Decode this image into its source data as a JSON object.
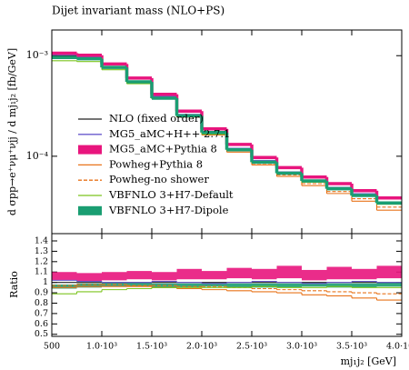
{
  "chart_data": [
    {
      "type": "histogram",
      "title": "Dijet invariant mass (NLO+PS)",
      "ylabel": "d σpp→e⁺νμ⁺νjj / d mj₁j₂ [fb/GeV]",
      "log_y": true,
      "legend": "lower left",
      "bins": [
        500,
        750,
        1000,
        1250,
        1500,
        1750,
        2000,
        2250,
        2500,
        2750,
        3000,
        3250,
        3500,
        3750,
        4000
      ],
      "xlim": [
        500,
        4000
      ],
      "ylim": [
        1.7e-05,
        0.0018
      ],
      "yticks": [
        {
          "value": 0.001,
          "label": "10⁻³"
        },
        {
          "value": 0.0001,
          "label": "10⁻⁴"
        }
      ],
      "series": [
        {
          "name": "NLO (fixed order)",
          "color": "#222222",
          "style": "line",
          "values": [
            0.001,
            0.00096,
            0.00078,
            0.00056,
            0.00039,
            0.00026,
            0.000175,
            0.00012,
            9e-05,
            7e-05,
            5.8e-05,
            4.9e-05,
            4.2e-05,
            3.5e-05
          ]
        },
        {
          "name": "MG5_aMC+H++ 2.7.1",
          "color": "#6a5acd",
          "style": "line",
          "values": [
            0.00102,
            0.00097,
            0.00078,
            0.00056,
            0.000394,
            0.00026,
            0.000173,
            0.00012,
            9.09e-05,
            7e-05,
            5.74e-05,
            4.9e-05,
            4.24e-05,
            3.5e-05
          ]
        },
        {
          "name": "MG5_aMC+Pythia 8",
          "color": "#e8157d",
          "style": "band",
          "values": [
            0.00106,
            0.00101,
            0.000827,
            0.000599,
            0.000413,
            0.000281,
            0.000187,
            0.000131,
            9.72e-05,
            7.7e-05,
            6.21e-05,
            5.34e-05,
            4.54e-05,
            3.85e-05
          ]
        },
        {
          "name": "Powheg+Pythia 8",
          "color": "#e8731a",
          "style": "line",
          "values": [
            0.00095,
            0.000922,
            0.000749,
            0.000538,
            0.000371,
            0.000244,
            0.000163,
            0.00011,
            8.19e-05,
            6.3e-05,
            5.1e-05,
            4.26e-05,
            3.57e-05,
            2.91e-05
          ]
        },
        {
          "name": "Powheg-no shower",
          "color": "#e8731a",
          "style": "dashed",
          "values": [
            0.00097,
            0.000941,
            0.000764,
            0.000543,
            0.000378,
            0.00025,
            0.000168,
            0.000114,
            8.46e-05,
            6.51e-05,
            5.34e-05,
            4.46e-05,
            3.78e-05,
            3.12e-05
          ]
        },
        {
          "name": "VBFNLO 3+H7-Default",
          "color": "#7cc41e",
          "style": "line",
          "values": [
            0.00089,
            0.000874,
            0.000725,
            0.000526,
            0.000371,
            0.000247,
            0.000166,
            0.000114,
            8.64e-05,
            6.65e-05,
            5.51e-05,
            4.7e-05,
            3.99e-05,
            3.33e-05
          ]
        },
        {
          "name": "VBFNLO 3+H7-Dipole",
          "color": "#1a9e72",
          "style": "band",
          "values": [
            0.00096,
            0.000931,
            0.000764,
            0.000549,
            0.000378,
            0.000252,
            0.000172,
            0.000116,
            8.73e-05,
            6.79e-05,
            5.68e-05,
            4.75e-05,
            4.07e-05,
            3.43e-05
          ]
        }
      ]
    },
    {
      "type": "histogram",
      "ylabel": "Ratio",
      "xlabel": "mj₁j₂ [GeV]",
      "bins": [
        500,
        750,
        1000,
        1250,
        1500,
        1750,
        2000,
        2250,
        2500,
        2750,
        3000,
        3250,
        3500,
        3750,
        4000
      ],
      "xlim": [
        500,
        4000
      ],
      "xticks": [
        500,
        {
          "value": 1000,
          "label": "1.0·10³"
        },
        {
          "value": 1500,
          "label": "1.5·10³"
        },
        {
          "value": 2000,
          "label": "2.0·10³"
        },
        {
          "value": 2500,
          "label": "2.5·10³"
        },
        {
          "value": 3000,
          "label": "3.0·10³"
        },
        {
          "value": 3500,
          "label": "3.5·10³"
        },
        {
          "value": 4000,
          "label": "4.0·10³"
        }
      ],
      "ylim": [
        0.48,
        1.47
      ],
      "yticks": [
        0.5,
        0.6,
        0.7,
        0.8,
        0.9,
        1,
        1.1,
        1.2,
        1.3,
        1.4
      ],
      "series": [
        {
          "color": "#e8157d",
          "style": "band",
          "values": [
            1.06,
            1.05,
            1.06,
            1.07,
            1.06,
            1.08,
            1.07,
            1.09,
            1.08,
            1.1,
            1.07,
            1.09,
            1.08,
            1.1
          ],
          "errors": [
            0.04,
            0.04,
            0.04,
            0.04,
            0.04,
            0.05,
            0.04,
            0.05,
            0.05,
            0.06,
            0.05,
            0.06,
            0.05,
            0.06
          ]
        },
        {
          "color": "#1a9e72",
          "style": "band",
          "values": [
            0.96,
            0.97,
            0.98,
            0.98,
            0.97,
            0.97,
            0.98,
            0.97,
            0.97,
            0.97,
            0.98,
            0.97,
            0.97,
            0.98
          ],
          "errors": [
            0.02,
            0.02,
            0.02,
            0.02,
            0.02,
            0.02,
            0.02,
            0.02,
            0.02,
            0.02,
            0.02,
            0.02,
            0.02,
            0.02
          ]
        },
        {
          "color": "#222222",
          "style": "line",
          "values": [
            1,
            1,
            1,
            1,
            1,
            1,
            1,
            1,
            1,
            1,
            1,
            1,
            1,
            1
          ]
        },
        {
          "color": "#6a5acd",
          "style": "line",
          "values": [
            1.02,
            1.01,
            1.0,
            1.0,
            1.01,
            1.0,
            0.99,
            1.0,
            1.01,
            1.0,
            0.99,
            1.0,
            1.01,
            1.0
          ]
        },
        {
          "color": "#e8731a",
          "style": "line",
          "values": [
            0.95,
            0.96,
            0.96,
            0.96,
            0.95,
            0.94,
            0.93,
            0.92,
            0.91,
            0.9,
            0.88,
            0.87,
            0.85,
            0.83
          ]
        },
        {
          "color": "#e8731a",
          "style": "dashed",
          "values": [
            0.97,
            0.98,
            0.98,
            0.97,
            0.97,
            0.96,
            0.96,
            0.95,
            0.94,
            0.93,
            0.92,
            0.91,
            0.9,
            0.89
          ]
        },
        {
          "color": "#7cc41e",
          "style": "line",
          "values": [
            0.89,
            0.91,
            0.93,
            0.94,
            0.95,
            0.95,
            0.95,
            0.95,
            0.96,
            0.95,
            0.95,
            0.96,
            0.95,
            0.95
          ]
        }
      ]
    }
  ]
}
